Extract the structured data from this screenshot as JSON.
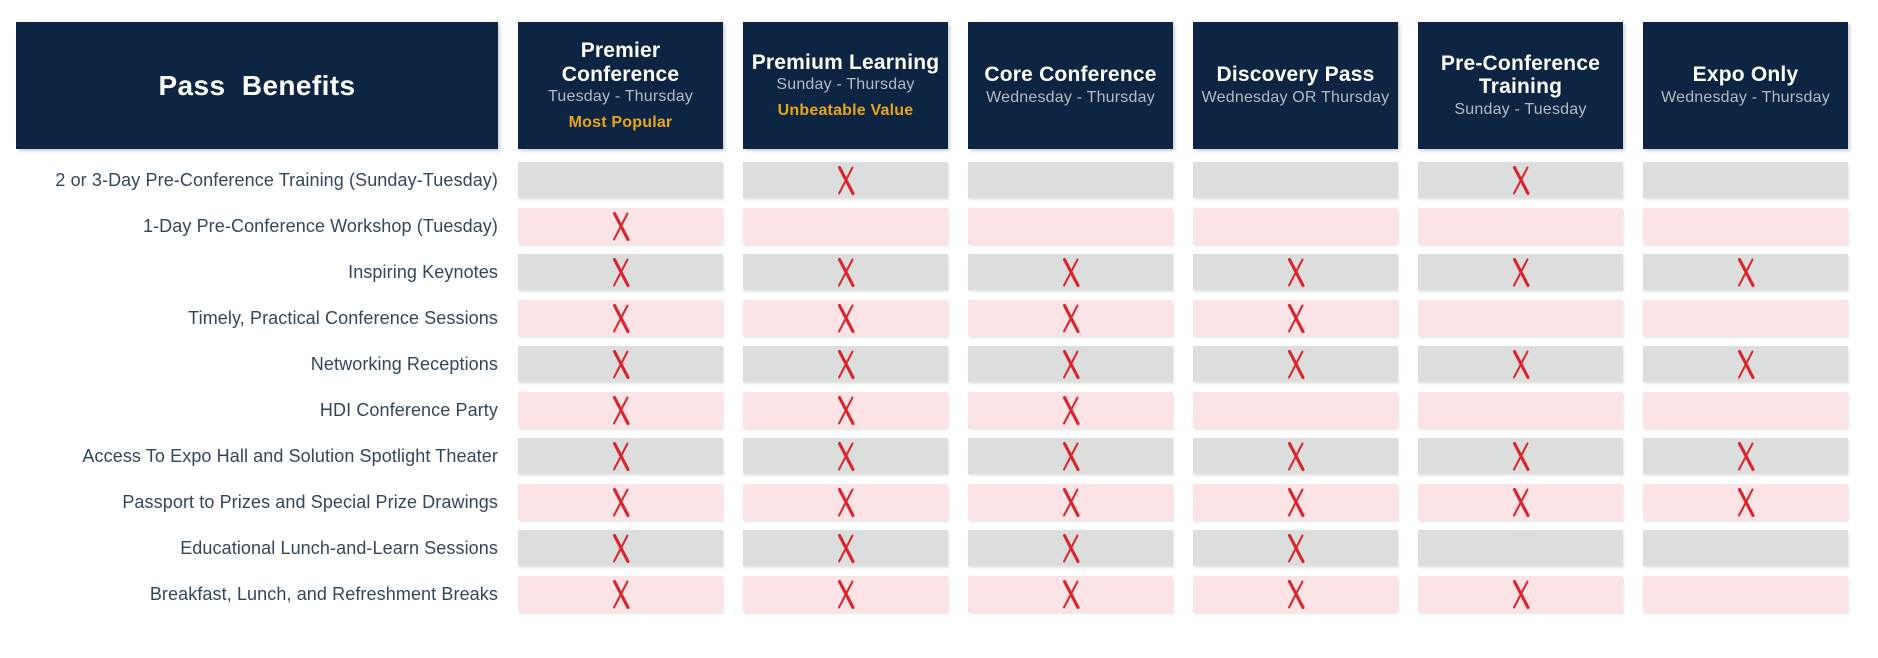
{
  "colors": {
    "navy": "#0d2543",
    "gold": "#e9a418",
    "gray_cell": "#dcdddd",
    "pink_cell": "#fce3e6",
    "x_red": "#d9262e",
    "label_text": "#33475b",
    "dates_text": "#b5bac3"
  },
  "chart_data": {
    "type": "table",
    "title": "Pass  Benefits",
    "mark_icon": "red-x-icon",
    "legend": "none",
    "columns": [
      {
        "title": "Premier Conference",
        "dates": "Tuesday - Thursday",
        "badge": "Most Popular"
      },
      {
        "title": "Premium Learning",
        "dates": "Sunday - Thursday",
        "badge": "Unbeatable Value"
      },
      {
        "title": "Core Conference",
        "dates": "Wednesday - Thursday",
        "badge": ""
      },
      {
        "title": "Discovery Pass",
        "dates": "Wednesday OR Thursday",
        "badge": ""
      },
      {
        "title": "Pre-Conference Training",
        "dates": "Sunday - Tuesday",
        "badge": ""
      },
      {
        "title": "Expo Only",
        "dates": "Wednesday - Thursday",
        "badge": ""
      }
    ],
    "rows": [
      {
        "label": "2 or 3-Day Pre-Conference Training (Sunday-Tuesday)",
        "included": [
          0,
          1,
          0,
          0,
          1,
          0
        ]
      },
      {
        "label": "1-Day Pre-Conference Workshop (Tuesday)",
        "included": [
          1,
          0,
          0,
          0,
          0,
          0
        ]
      },
      {
        "label": "Inspiring Keynotes",
        "included": [
          1,
          1,
          1,
          1,
          1,
          1
        ]
      },
      {
        "label": "Timely, Practical Conference Sessions",
        "included": [
          1,
          1,
          1,
          1,
          0,
          0
        ]
      },
      {
        "label": "Networking Receptions",
        "included": [
          1,
          1,
          1,
          1,
          1,
          1
        ]
      },
      {
        "label": "HDI Conference Party",
        "included": [
          1,
          1,
          1,
          0,
          0,
          0
        ]
      },
      {
        "label": "Access To Expo Hall and Solution Spotlight Theater",
        "included": [
          1,
          1,
          1,
          1,
          1,
          1
        ]
      },
      {
        "label": "Passport to Prizes and Special Prize Drawings",
        "included": [
          1,
          1,
          1,
          1,
          1,
          1
        ]
      },
      {
        "label": "Educational Lunch-and-Learn Sessions",
        "included": [
          1,
          1,
          1,
          1,
          0,
          0
        ]
      },
      {
        "label": "Breakfast, Lunch, and Refreshment Breaks",
        "included": [
          1,
          1,
          1,
          1,
          1,
          0
        ]
      }
    ]
  }
}
